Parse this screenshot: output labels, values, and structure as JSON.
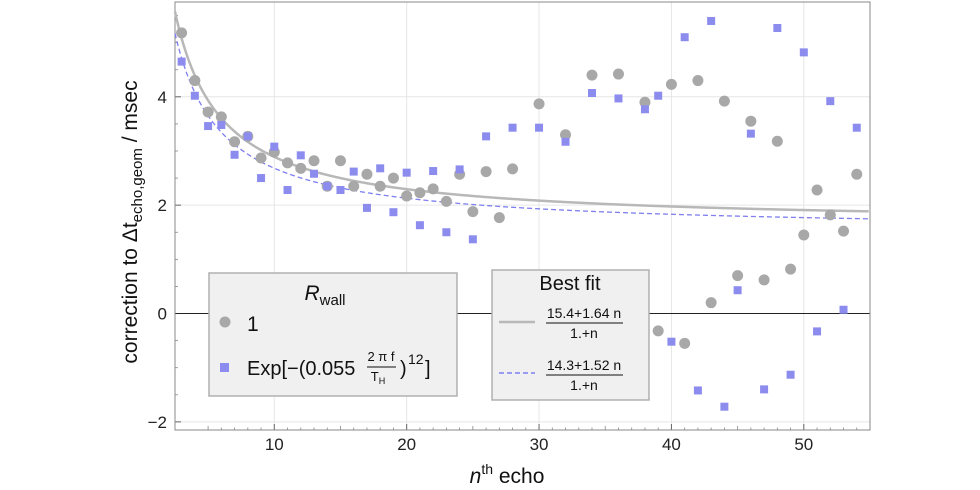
{
  "chart_data": {
    "type": "scatter",
    "xlabel": "n^th echo",
    "ylabel": "correction to Δt_echo,geom / msec",
    "xlim": [
      2.5,
      55
    ],
    "ylim": [
      -2.15,
      5.75
    ],
    "x_ticks": [
      10,
      20,
      30,
      40,
      50
    ],
    "y_ticks": [
      -2,
      0,
      2,
      4
    ],
    "grid": true,
    "series": [
      {
        "name": "1",
        "marker": "circle",
        "color": "#a8a8a8",
        "points": [
          [
            3,
            5.18
          ],
          [
            4,
            4.3
          ],
          [
            5,
            3.72
          ],
          [
            6,
            3.63
          ],
          [
            7,
            3.17
          ],
          [
            8,
            3.27
          ],
          [
            9,
            2.87
          ],
          [
            10,
            2.98
          ],
          [
            11,
            2.78
          ],
          [
            12,
            2.68
          ],
          [
            13,
            2.82
          ],
          [
            14,
            2.35
          ],
          [
            15,
            2.82
          ],
          [
            16,
            2.35
          ],
          [
            17,
            2.57
          ],
          [
            18,
            2.35
          ],
          [
            19,
            2.5
          ],
          [
            20,
            2.17
          ],
          [
            21,
            2.23
          ],
          [
            22,
            2.3
          ],
          [
            23,
            2.07
          ],
          [
            24,
            2.57
          ],
          [
            25,
            1.88
          ],
          [
            26,
            2.62
          ],
          [
            27,
            1.77
          ],
          [
            28,
            2.67
          ],
          [
            30,
            3.87
          ],
          [
            32,
            3.3
          ],
          [
            34,
            4.4
          ],
          [
            36,
            4.42
          ],
          [
            38,
            3.9
          ],
          [
            39,
            -0.32
          ],
          [
            40,
            4.23
          ],
          [
            41,
            -0.55
          ],
          [
            42,
            4.3
          ],
          [
            43,
            0.2
          ],
          [
            44,
            3.92
          ],
          [
            45,
            0.7
          ],
          [
            46,
            3.55
          ],
          [
            47,
            0.62
          ],
          [
            48,
            3.18
          ],
          [
            49,
            0.82
          ],
          [
            50,
            1.45
          ],
          [
            51,
            2.28
          ],
          [
            52,
            1.82
          ],
          [
            53,
            1.52
          ],
          [
            54,
            2.57
          ]
        ]
      },
      {
        "name": "Exp[-(0.055 2πf/T_H)^12]",
        "marker": "square",
        "color": "#8c8cef",
        "points": [
          [
            3,
            4.65
          ],
          [
            4,
            4.02
          ],
          [
            5,
            3.46
          ],
          [
            6,
            3.48
          ],
          [
            7,
            2.93
          ],
          [
            8,
            3.27
          ],
          [
            9,
            2.5
          ],
          [
            10,
            3.08
          ],
          [
            11,
            2.28
          ],
          [
            12,
            2.92
          ],
          [
            13,
            2.58
          ],
          [
            14,
            2.35
          ],
          [
            15,
            2.28
          ],
          [
            16,
            2.62
          ],
          [
            17,
            1.95
          ],
          [
            18,
            2.68
          ],
          [
            19,
            1.87
          ],
          [
            20,
            2.6
          ],
          [
            21,
            1.63
          ],
          [
            22,
            2.63
          ],
          [
            23,
            1.5
          ],
          [
            24,
            2.66
          ],
          [
            25,
            1.37
          ],
          [
            26,
            3.27
          ],
          [
            28,
            3.43
          ],
          [
            30,
            3.43
          ],
          [
            32,
            3.17
          ],
          [
            34,
            4.07
          ],
          [
            36,
            3.97
          ],
          [
            38,
            3.77
          ],
          [
            39,
            4.02
          ],
          [
            40,
            -0.52
          ],
          [
            41,
            5.1
          ],
          [
            42,
            -1.42
          ],
          [
            43,
            5.4
          ],
          [
            44,
            -1.72
          ],
          [
            45,
            0.43
          ],
          [
            46,
            3.32
          ],
          [
            47,
            -1.4
          ],
          [
            48,
            5.27
          ],
          [
            49,
            -1.13
          ],
          [
            50,
            4.82
          ],
          [
            51,
            -0.33
          ],
          [
            52,
            3.92
          ],
          [
            53,
            0.07
          ],
          [
            54,
            3.43
          ]
        ]
      }
    ],
    "fits": [
      {
        "name": "(15.4+1.64 n)/(1.+n)",
        "a": 15.4,
        "b": 1.64,
        "style": "solid",
        "color": "#b8b8b8"
      },
      {
        "name": "(14.3+1.52 n)/(1.+n)",
        "a": 14.3,
        "b": 1.52,
        "style": "dashed",
        "color": "#7f7ff0"
      }
    ],
    "legends": [
      {
        "title_main": "R",
        "title_sub": "wall",
        "entry1": "1",
        "entry2_prefix": "Exp[−(0.055",
        "entry2_frac_num": "2 π f",
        "entry2_frac_den_main": "T",
        "entry2_frac_den_sub": "H",
        "entry2_suffix": ")",
        "entry2_exp": "12",
        "entry2_close": "]"
      },
      {
        "title": "Best fit",
        "fit1_num": "15.4+1.64 n",
        "fit1_den": "1.+n",
        "fit2_num": "14.3+1.52 n",
        "fit2_den": "1.+n"
      }
    ]
  },
  "labels": {
    "x_main": "n",
    "x_sup": "th",
    "x_rest": " echo",
    "y_prefix": "correction to Δt",
    "y_sub": "echo,geom",
    "y_suffix": " / msec"
  }
}
